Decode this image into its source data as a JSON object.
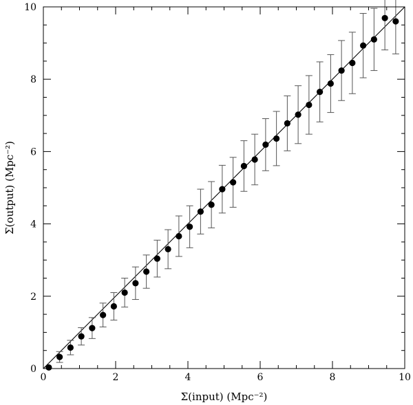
{
  "chart_data": {
    "type": "scatter",
    "xlabel": "Σ(input) (Mpc⁻²)",
    "ylabel": "Σ(output) (Mpc⁻²)",
    "xlim": [
      0,
      10
    ],
    "ylim": [
      0,
      10
    ],
    "xticks": [
      "0",
      "2",
      "4",
      "6",
      "8",
      "10"
    ],
    "yticks": [
      "0",
      "2",
      "4",
      "6",
      "8",
      "10"
    ],
    "grid": false,
    "reference_line": {
      "type": "identity",
      "x": [
        0,
        10
      ],
      "y": [
        0,
        10
      ]
    },
    "points": [
      {
        "x": 0.15,
        "y": 0.03,
        "err": 0.0
      },
      {
        "x": 0.45,
        "y": 0.32,
        "err": 0.15
      },
      {
        "x": 0.75,
        "y": 0.58,
        "err": 0.2
      },
      {
        "x": 1.05,
        "y": 0.89,
        "err": 0.24
      },
      {
        "x": 1.35,
        "y": 1.12,
        "err": 0.29
      },
      {
        "x": 1.65,
        "y": 1.48,
        "err": 0.33
      },
      {
        "x": 1.95,
        "y": 1.72,
        "err": 0.38
      },
      {
        "x": 2.25,
        "y": 2.1,
        "err": 0.4
      },
      {
        "x": 2.55,
        "y": 2.36,
        "err": 0.45
      },
      {
        "x": 2.85,
        "y": 2.68,
        "err": 0.46
      },
      {
        "x": 3.15,
        "y": 3.04,
        "err": 0.51
      },
      {
        "x": 3.45,
        "y": 3.3,
        "err": 0.54
      },
      {
        "x": 3.75,
        "y": 3.66,
        "err": 0.56
      },
      {
        "x": 4.05,
        "y": 3.92,
        "err": 0.58
      },
      {
        "x": 4.35,
        "y": 4.34,
        "err": 0.62
      },
      {
        "x": 4.65,
        "y": 4.53,
        "err": 0.64
      },
      {
        "x": 4.95,
        "y": 4.96,
        "err": 0.66
      },
      {
        "x": 5.25,
        "y": 5.15,
        "err": 0.69
      },
      {
        "x": 5.55,
        "y": 5.6,
        "err": 0.7
      },
      {
        "x": 5.85,
        "y": 5.78,
        "err": 0.7
      },
      {
        "x": 6.15,
        "y": 6.19,
        "err": 0.72
      },
      {
        "x": 6.45,
        "y": 6.36,
        "err": 0.75
      },
      {
        "x": 6.75,
        "y": 6.78,
        "err": 0.76
      },
      {
        "x": 7.05,
        "y": 7.02,
        "err": 0.8
      },
      {
        "x": 7.35,
        "y": 7.29,
        "err": 0.81
      },
      {
        "x": 7.65,
        "y": 7.65,
        "err": 0.83
      },
      {
        "x": 7.95,
        "y": 7.88,
        "err": 0.8
      },
      {
        "x": 8.25,
        "y": 8.24,
        "err": 0.83
      },
      {
        "x": 8.55,
        "y": 8.45,
        "err": 0.85
      },
      {
        "x": 8.85,
        "y": 8.93,
        "err": 0.89
      },
      {
        "x": 9.15,
        "y": 9.1,
        "err": 0.86
      },
      {
        "x": 9.45,
        "y": 9.69,
        "err": 0.88
      },
      {
        "x": 9.75,
        "y": 9.6,
        "err": 0.9
      }
    ]
  }
}
